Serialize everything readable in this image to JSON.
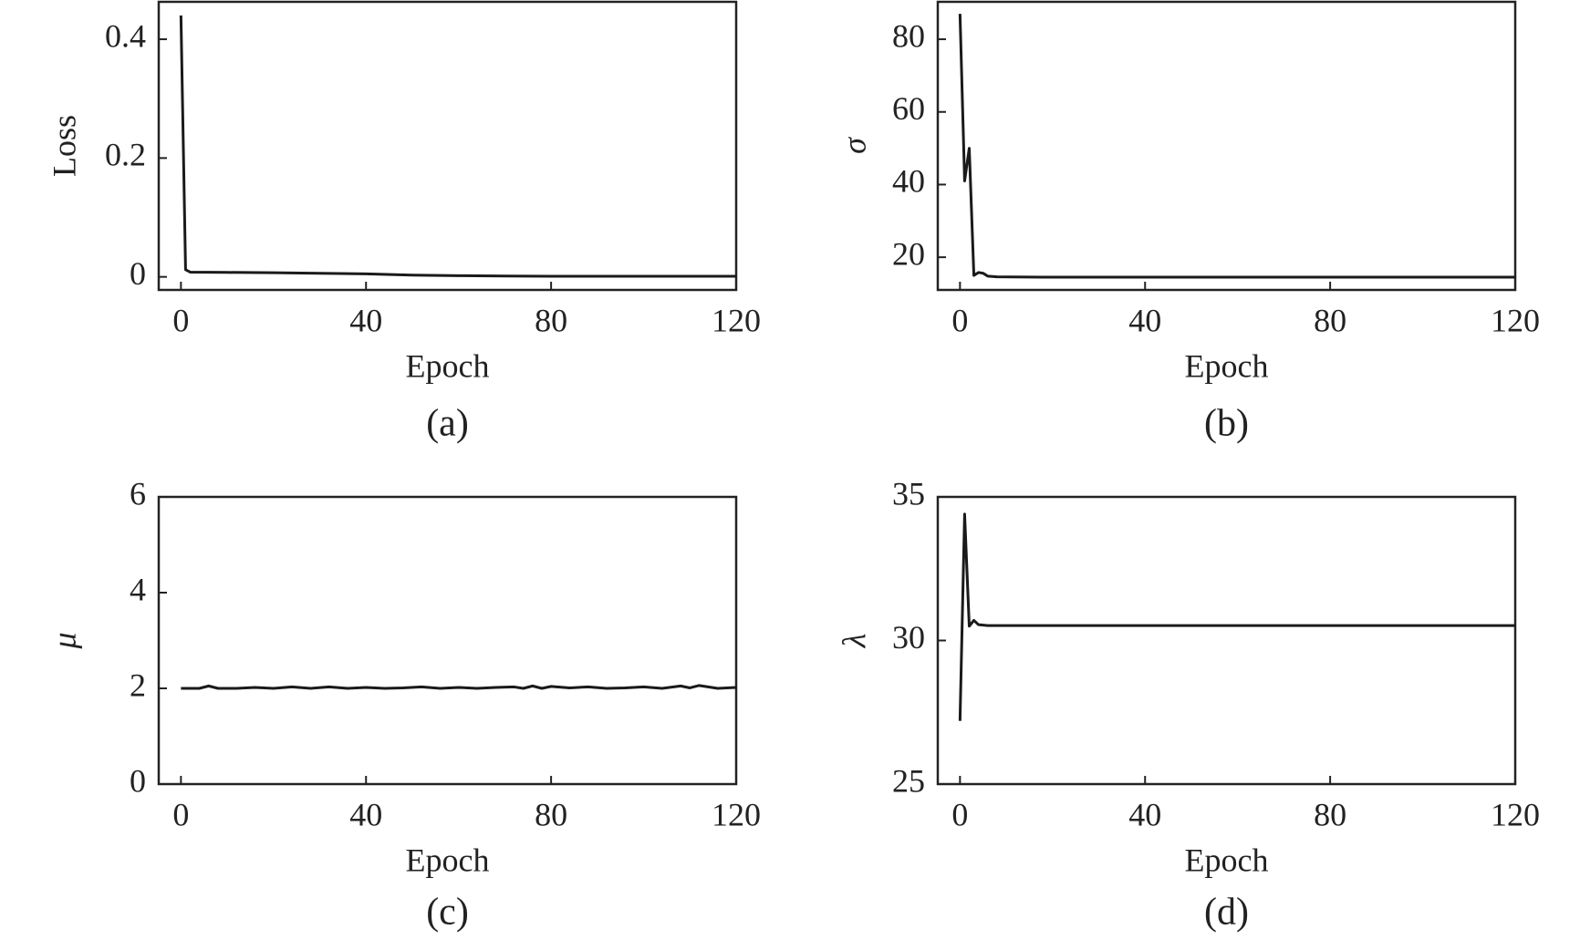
{
  "chart_data": [
    {
      "type": "line",
      "caption": "(a)",
      "xlabel": "Epoch",
      "ylabel": "Loss",
      "ylabel_italic": false,
      "color": "#1a1a1a",
      "x": [
        0,
        1,
        2,
        10,
        20,
        30,
        40,
        50,
        60,
        70,
        80,
        90,
        100,
        110,
        120
      ],
      "values": [
        0.44,
        0.012,
        0.008,
        0.0075,
        0.007,
        0.006,
        0.005,
        0.003,
        0.002,
        0.0015,
        0.001,
        0.001,
        0.001,
        0.001,
        0.001
      ],
      "xlim": [
        -4.8,
        120
      ],
      "ylim": [
        -0.022,
        0.463
      ],
      "xticks": [
        0,
        40,
        80,
        120
      ],
      "yticks": [
        0,
        0.2,
        0.4
      ]
    },
    {
      "type": "line",
      "caption": "(b)",
      "xlabel": "Epoch",
      "ylabel": "σ",
      "ylabel_italic": true,
      "color": "#1a1a1a",
      "x": [
        0,
        1,
        2,
        3,
        4,
        5,
        6,
        8,
        20,
        60,
        120
      ],
      "values": [
        87,
        41,
        50,
        15,
        15.8,
        15.6,
        14.8,
        14.6,
        14.5,
        14.5,
        14.5
      ],
      "xlim": [
        -4.8,
        120
      ],
      "ylim": [
        11,
        90.3
      ],
      "xticks": [
        0,
        40,
        80,
        120
      ],
      "yticks": [
        20,
        40,
        60,
        80
      ]
    },
    {
      "type": "line",
      "caption": "(c)",
      "xlabel": "Epoch",
      "ylabel": "μ",
      "ylabel_italic": true,
      "color": "#1a1a1a",
      "x": [
        0,
        4,
        6,
        8,
        12,
        16,
        20,
        24,
        28,
        32,
        36,
        40,
        44,
        48,
        52,
        56,
        60,
        64,
        68,
        72,
        74,
        76,
        78,
        80,
        84,
        88,
        92,
        96,
        100,
        104,
        108,
        110,
        112,
        116,
        120
      ],
      "values": [
        2.0,
        2.0,
        2.05,
        2.0,
        2.0,
        2.02,
        2.0,
        2.03,
        2.0,
        2.03,
        2.0,
        2.02,
        2.0,
        2.01,
        2.03,
        2.0,
        2.02,
        2.0,
        2.02,
        2.03,
        2.0,
        2.05,
        2.0,
        2.04,
        2.01,
        2.03,
        2.0,
        2.01,
        2.03,
        2.0,
        2.05,
        2.01,
        2.06,
        2.0,
        2.02
      ],
      "xlim": [
        -4.8,
        120
      ],
      "ylim": [
        0,
        6
      ],
      "xticks": [
        0,
        40,
        80,
        120
      ],
      "yticks": [
        0,
        2,
        4,
        6
      ]
    },
    {
      "type": "line",
      "caption": "(d)",
      "xlabel": "Epoch",
      "ylabel": "λ",
      "ylabel_italic": true,
      "color": "#1a1a1a",
      "x": [
        0,
        1,
        2,
        3,
        4,
        6,
        20,
        60,
        120
      ],
      "values": [
        27.2,
        34.4,
        30.5,
        30.7,
        30.55,
        30.52,
        30.52,
        30.52,
        30.52
      ],
      "xlim": [
        -4.8,
        120
      ],
      "ylim": [
        25,
        35
      ],
      "xticks": [
        0,
        40,
        80,
        120
      ],
      "yticks": [
        25,
        30,
        35
      ]
    }
  ]
}
